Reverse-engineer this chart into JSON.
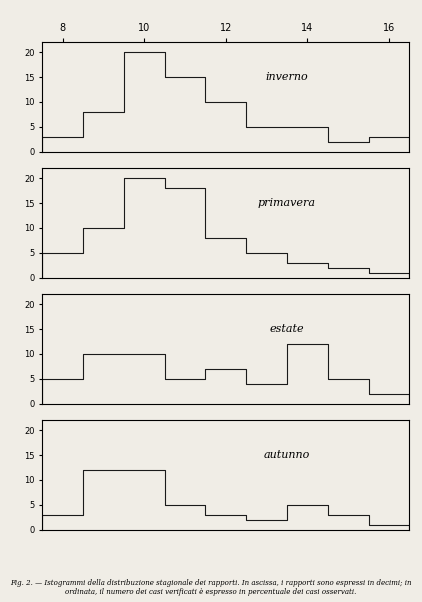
{
  "title": "Fig. 2.",
  "caption": "Istogrammi della distribuzione stagionale dei rapporti. In ascissa, i rapporti sono espressi in decimi; in ordinata, il numero dei casi verificati è espresso in percentuale dei casi osservati.",
  "seasons": [
    "inverno",
    "primavera",
    "estate",
    "autunno"
  ],
  "x_ticks": [
    8,
    10,
    12,
    14,
    16
  ],
  "xlim": [
    7.5,
    16.5
  ],
  "ylim": [
    0,
    22
  ],
  "yticks": [
    0,
    5,
    10,
    15,
    20
  ],
  "bar_width": 1.0,
  "background_color": "#f0ede6",
  "line_color": "#1a1a1a",
  "inverno": {
    "bins": [
      8,
      9,
      10,
      11,
      12,
      13,
      14,
      15,
      16
    ],
    "heights": [
      3,
      8,
      20,
      15,
      10,
      5,
      5,
      2,
      3
    ]
  },
  "primavera": {
    "bins": [
      8,
      9,
      10,
      11,
      12,
      13,
      14,
      15,
      16
    ],
    "heights": [
      5,
      10,
      20,
      18,
      8,
      5,
      3,
      2,
      1
    ]
  },
  "estate": {
    "bins": [
      8,
      9,
      10,
      11,
      12,
      13,
      14,
      15,
      16
    ],
    "heights": [
      5,
      10,
      10,
      5,
      7,
      4,
      12,
      5,
      2
    ]
  },
  "autunno": {
    "bins": [
      8,
      9,
      10,
      11,
      12,
      13,
      14,
      15,
      16
    ],
    "heights": [
      3,
      12,
      12,
      5,
      3,
      2,
      5,
      3,
      1
    ]
  }
}
